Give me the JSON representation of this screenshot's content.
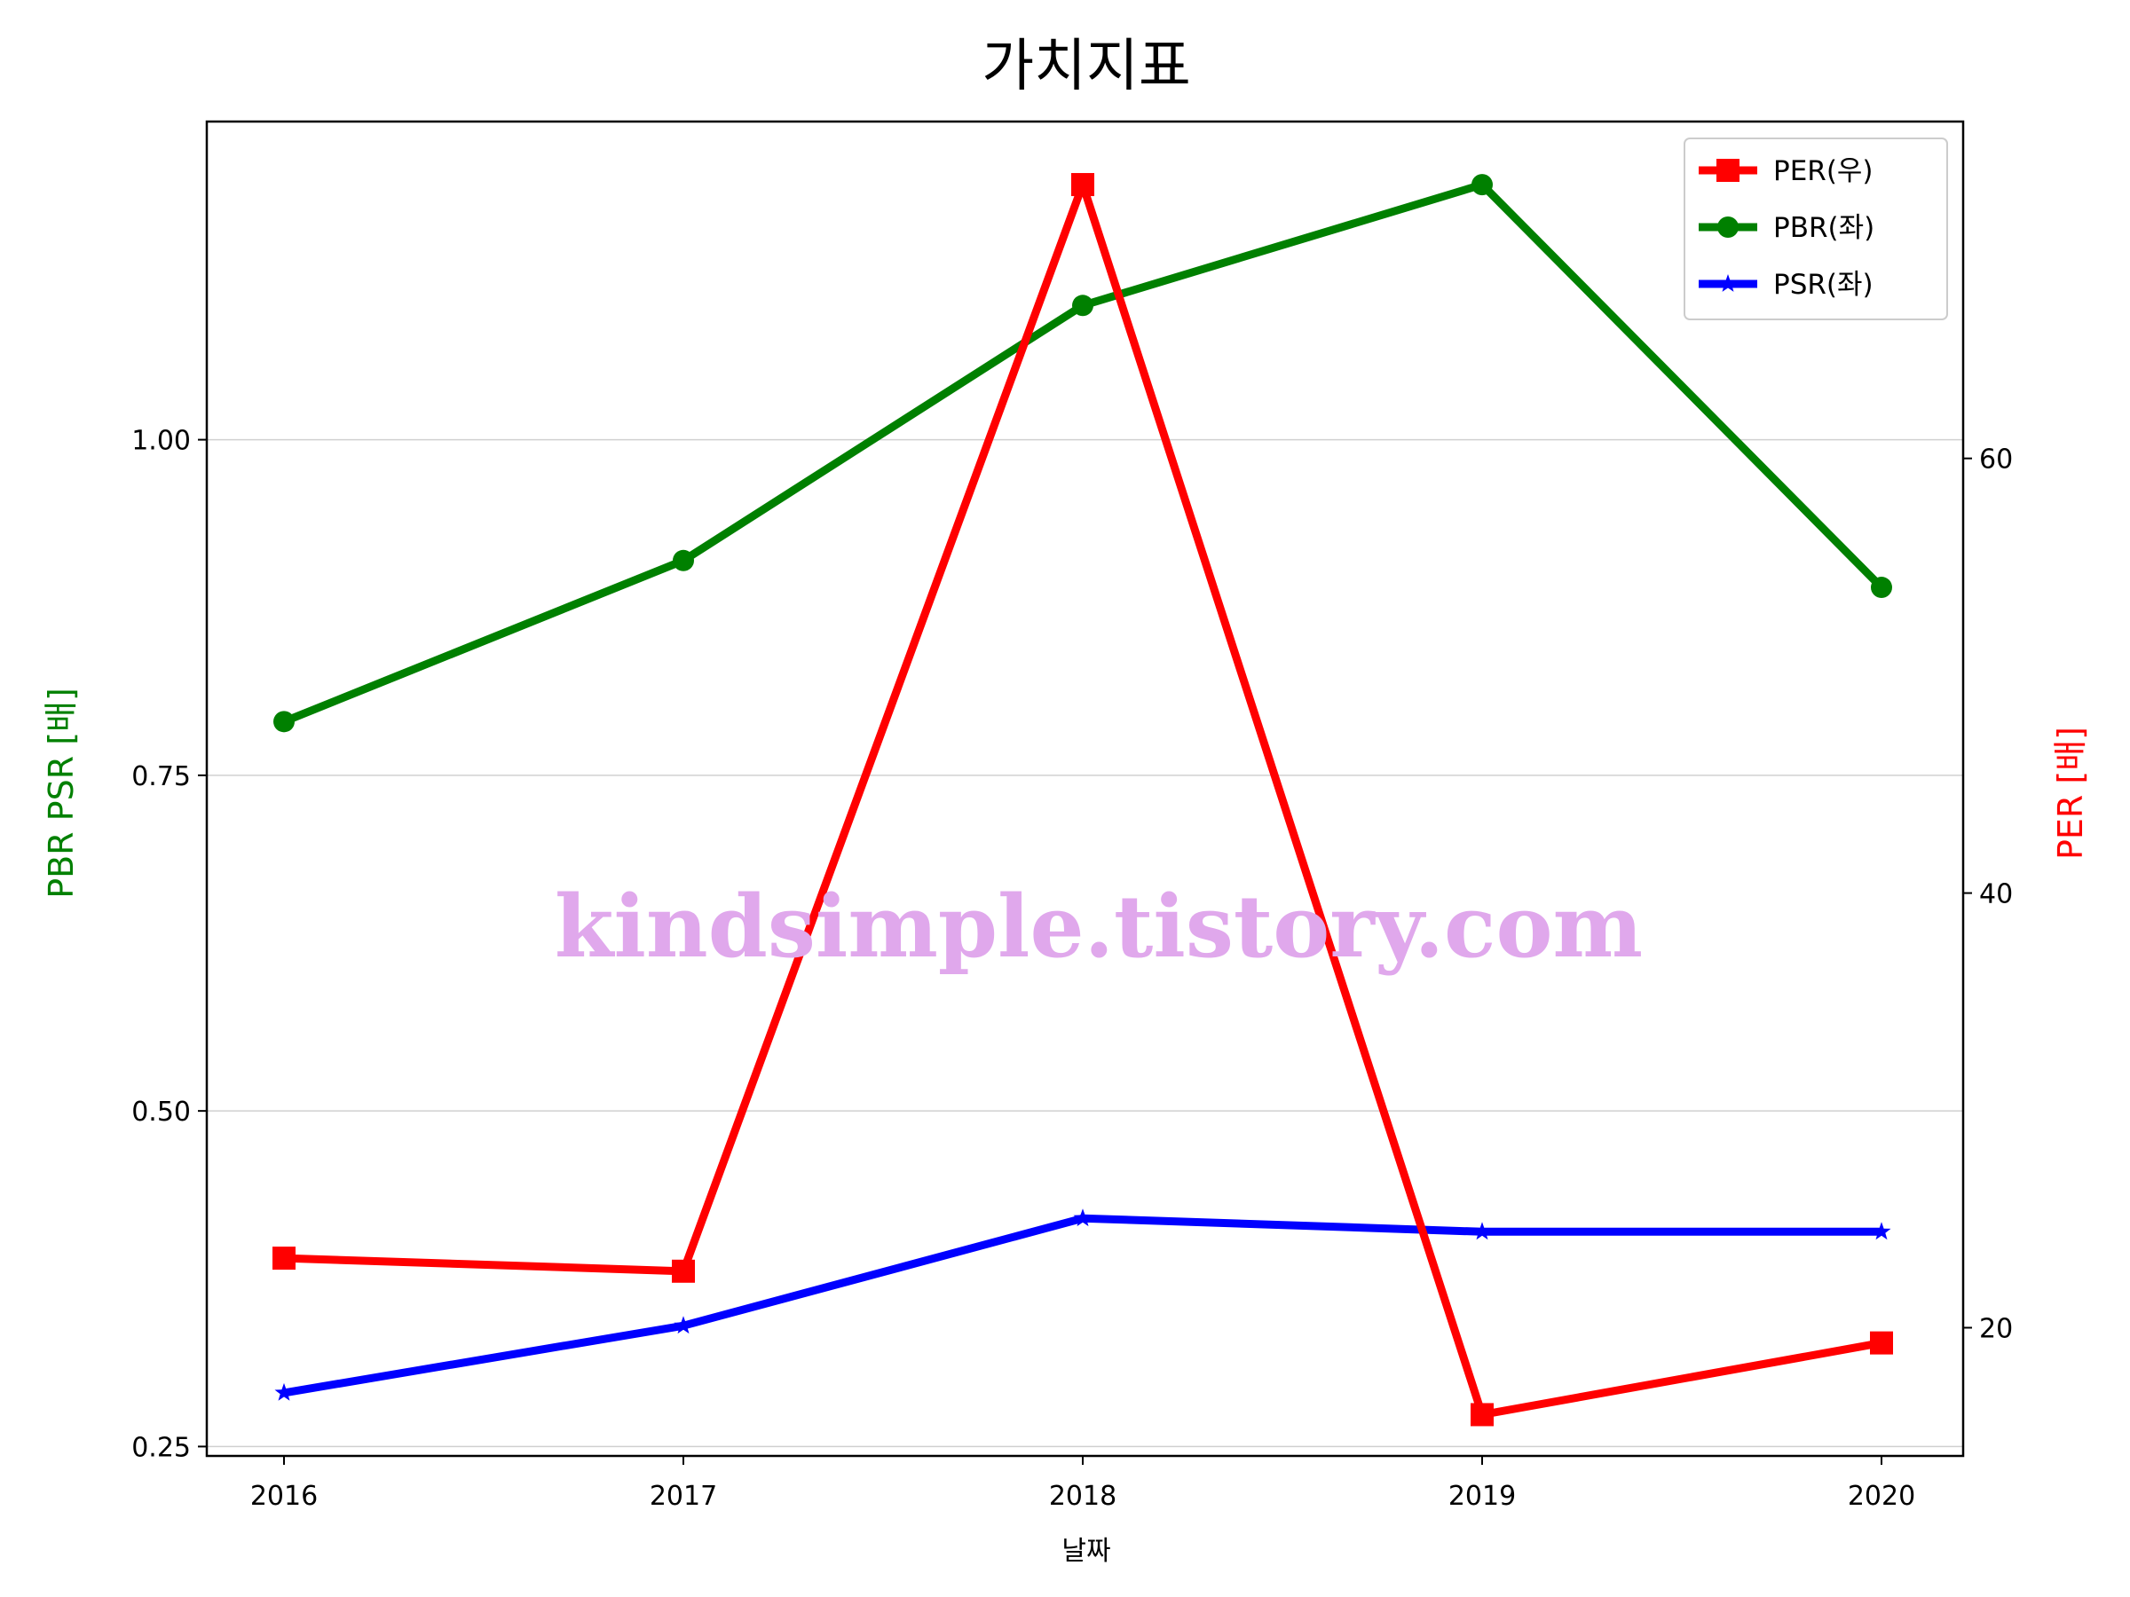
{
  "chart_data": {
    "type": "line",
    "title": "가치지표",
    "xlabel": "날짜",
    "ylabel_left": "PBR PSR [배]",
    "ylabel_right": "PER [배]",
    "categories": [
      "2016",
      "2017",
      "2018",
      "2019",
      "2020"
    ],
    "left_axis": {
      "ylim": [
        0.243,
        1.237
      ],
      "ticks": [
        0.25,
        0.5,
        0.75,
        1.0
      ],
      "tick_labels": [
        "0.25",
        "0.50",
        "0.75",
        "1.00"
      ]
    },
    "right_axis": {
      "ylim": [
        14.1,
        75.5
      ],
      "ticks": [
        20,
        40,
        60
      ],
      "tick_labels": [
        "20",
        "40",
        "60"
      ]
    },
    "grid": "horizontal",
    "legend_position": "top-right",
    "series": [
      {
        "name": "PER(우)",
        "axis": "right",
        "color": "#ff0000",
        "marker": "square",
        "values": [
          23.2,
          22.6,
          72.6,
          16.0,
          19.3
        ]
      },
      {
        "name": "PBR(좌)",
        "axis": "left",
        "color": "#008000",
        "marker": "circle",
        "values": [
          0.79,
          0.91,
          1.1,
          1.19,
          0.89
        ]
      },
      {
        "name": "PSR(좌)",
        "axis": "left",
        "color": "#0000ff",
        "marker": "star",
        "values": [
          0.29,
          0.34,
          0.42,
          0.41,
          0.41
        ]
      }
    ]
  },
  "watermark": {
    "text": "kindsimple.tistory.com",
    "color": "#e0a8ec"
  }
}
